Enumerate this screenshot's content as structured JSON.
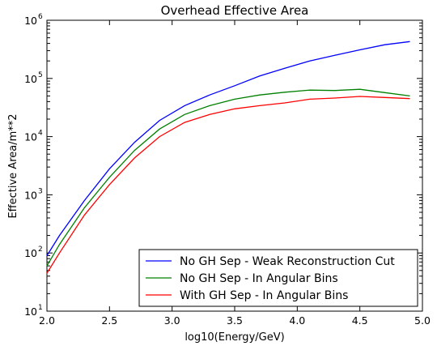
{
  "chart_data": {
    "type": "line",
    "title": "Overhead Effective Area",
    "xlabel": "log10(Energy/GeV)",
    "ylabel": "Effective Area/m**2",
    "xlim": [
      2.0,
      5.0
    ],
    "ylim_log10": [
      1,
      6
    ],
    "yscale": "log",
    "grid": false,
    "legend_position": "bottom-right",
    "x_ticks": [
      "2.0",
      "2.5",
      "3.0",
      "3.5",
      "4.0",
      "4.5",
      "5.0"
    ],
    "y_ticks": [
      {
        "base": "10",
        "exp": "1"
      },
      {
        "base": "10",
        "exp": "2"
      },
      {
        "base": "10",
        "exp": "3"
      },
      {
        "base": "10",
        "exp": "4"
      },
      {
        "base": "10",
        "exp": "5"
      },
      {
        "base": "10",
        "exp": "6"
      }
    ],
    "x": [
      2.0,
      2.1,
      2.3,
      2.5,
      2.7,
      2.9,
      3.1,
      3.3,
      3.5,
      3.7,
      3.9,
      4.1,
      4.3,
      4.5,
      4.7,
      4.9
    ],
    "series": [
      {
        "name": "No GH Sep - Weak Reconstruction Cut",
        "color": "#0000ff",
        "values": [
          90,
          200,
          800,
          2800,
          8000,
          19000,
          34000,
          52000,
          75000,
          110000,
          150000,
          200000,
          250000,
          310000,
          380000,
          430000
        ]
      },
      {
        "name": "No GH Sep - In Angular Bins",
        "color": "#008000",
        "values": [
          60,
          140,
          600,
          2000,
          5800,
          13500,
          24000,
          34000,
          44000,
          52000,
          58000,
          63000,
          62000,
          65000,
          57000,
          50000
        ]
      },
      {
        "name": "With GH Sep - In Angular Bins",
        "color": "#ff0000",
        "values": [
          45,
          100,
          450,
          1500,
          4300,
          10000,
          17500,
          24000,
          30000,
          34000,
          38000,
          44000,
          46000,
          49000,
          47000,
          45000
        ]
      }
    ]
  }
}
